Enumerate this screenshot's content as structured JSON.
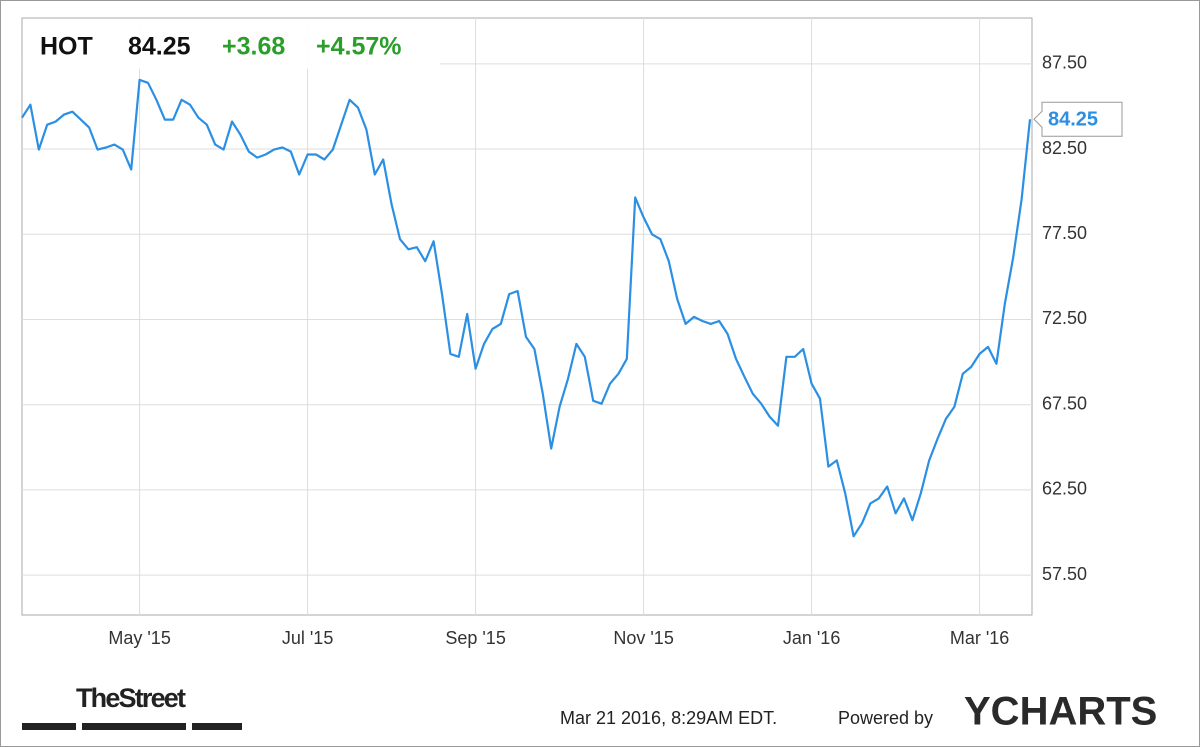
{
  "chart_data": {
    "type": "line",
    "change": "+3.68",
    "change_percent": "+4.57%",
    "timestamp": "Mar 21 2016, 8:29AM EDT.",
    "powered_by": "Powered by",
    "brand": "YCHARTS",
    "source": "TheStreet",
    "categories": [
      null,
      null,
      null,
      null,
      null,
      null,
      null,
      null,
      null,
      null,
      null,
      null,
      null,
      null,
      "May '15",
      null,
      null,
      null,
      null,
      null,
      null,
      null,
      null,
      null,
      null,
      null,
      null,
      null,
      null,
      null,
      null,
      null,
      null,
      null,
      "Jul '15",
      null,
      null,
      null,
      null,
      null,
      null,
      null,
      null,
      null,
      null,
      null,
      null,
      null,
      null,
      null,
      null,
      null,
      null,
      null,
      "Sep '15",
      null,
      null,
      null,
      null,
      null,
      null,
      null,
      null,
      null,
      null,
      null,
      null,
      null,
      null,
      null,
      null,
      null,
      null,
      null,
      "Nov '15",
      null,
      null,
      null,
      null,
      null,
      null,
      null,
      null,
      null,
      null,
      null,
      null,
      null,
      null,
      null,
      null,
      null,
      null,
      null,
      "Jan '16",
      null,
      null,
      null,
      null,
      null,
      null,
      null,
      null,
      null,
      null,
      null,
      null,
      null,
      null,
      null,
      null,
      null,
      null,
      null,
      "Mar '16",
      null,
      null,
      null,
      null,
      null,
      null
    ],
    "series": [
      {
        "name": "HOT",
        "color": "#2b8fe3",
        "values": [
          84.34,
          85.1,
          82.47,
          83.93,
          84.11,
          84.52,
          84.69,
          84.23,
          83.76,
          82.47,
          82.59,
          82.76,
          82.47,
          81.3,
          86.56,
          86.39,
          85.39,
          84.23,
          84.23,
          85.39,
          85.1,
          84.34,
          83.93,
          82.76,
          82.47,
          84.11,
          83.35,
          82.35,
          82.0,
          82.18,
          82.47,
          82.59,
          82.35,
          81.01,
          82.18,
          82.18,
          81.89,
          82.47,
          83.93,
          85.39,
          84.93,
          83.64,
          81.01,
          81.89,
          79.25,
          77.21,
          76.62,
          76.74,
          75.92,
          77.09,
          73.99,
          70.48,
          70.31,
          72.82,
          69.61,
          71.07,
          71.94,
          72.24,
          73.99,
          74.17,
          71.48,
          70.77,
          68.14,
          64.93,
          67.38,
          69.02,
          71.07,
          70.31,
          67.73,
          67.56,
          68.73,
          69.31,
          70.19,
          79.66,
          78.49,
          77.5,
          77.21,
          75.92,
          73.7,
          72.24,
          72.65,
          72.41,
          72.24,
          72.41,
          71.65,
          70.19,
          69.14,
          68.14,
          67.56,
          66.8,
          66.27,
          70.31,
          70.31,
          70.77,
          68.73,
          67.85,
          63.87,
          64.23,
          62.3,
          59.78,
          60.54,
          61.71,
          62.0,
          62.7,
          61.13,
          62.0,
          60.72,
          62.3,
          64.23,
          65.51,
          66.68,
          67.38,
          69.31,
          69.72,
          70.48,
          70.89,
          69.9,
          73.41,
          76.15,
          79.55,
          84.25
        ]
      }
    ],
    "ylim": [
      55.16,
      90.19
    ],
    "yticks": [
      {
        "value": 57.5,
        "label": "57.50"
      },
      {
        "value": 62.5,
        "label": "62.50"
      },
      {
        "value": 67.5,
        "label": "67.50"
      },
      {
        "value": 72.5,
        "label": "72.50"
      },
      {
        "value": 77.5,
        "label": "77.50"
      },
      {
        "value": 82.5,
        "label": "82.50"
      },
      {
        "value": 87.5,
        "label": "87.50"
      }
    ],
    "grid": true,
    "change_color": "#2a9d2a"
  }
}
